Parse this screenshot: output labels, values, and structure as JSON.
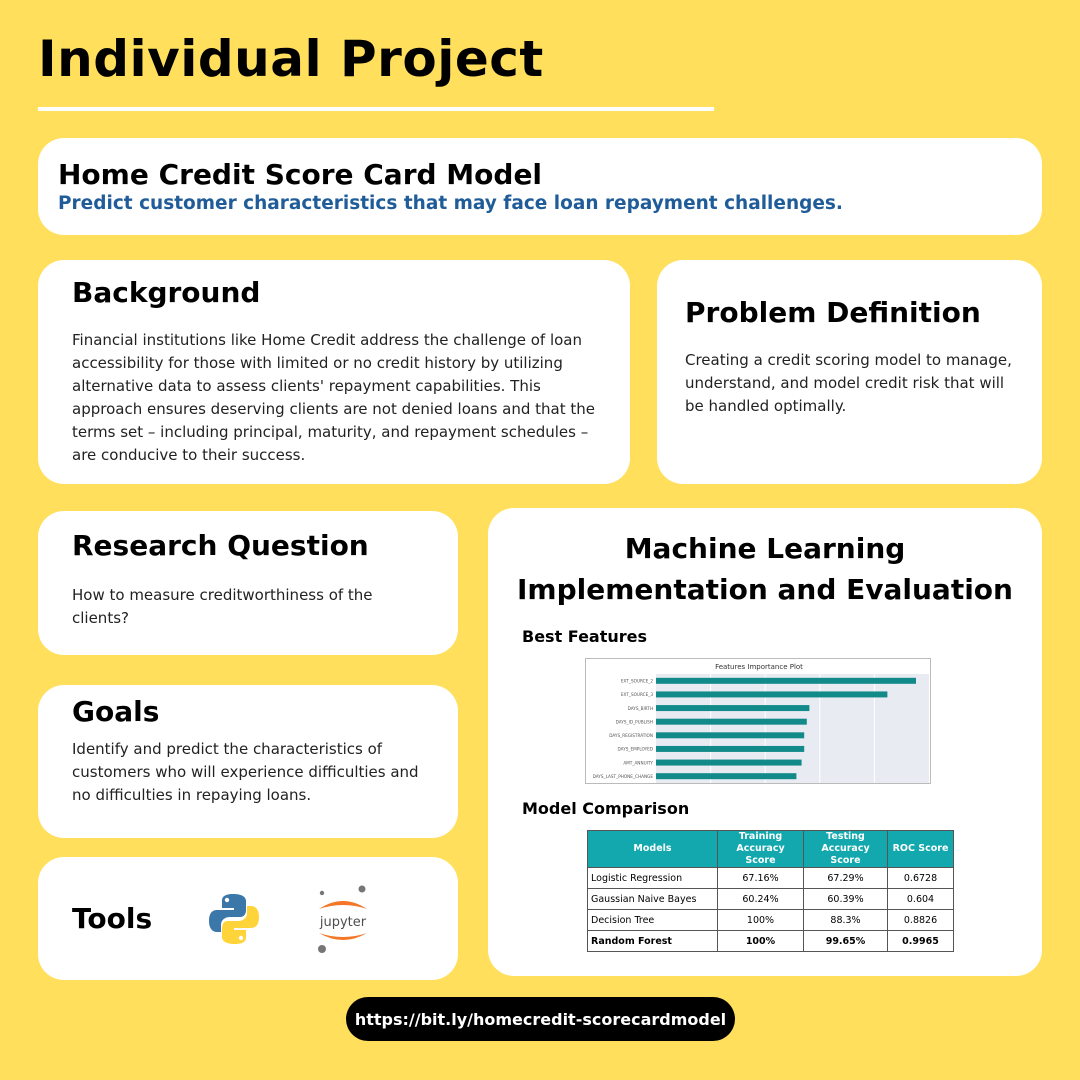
{
  "page_title": "Individual Project",
  "header": {
    "title": "Home Credit Score Card Model",
    "subtitle": "Predict customer characteristics that may face loan repayment challenges."
  },
  "background": {
    "title": "Background",
    "text": "Financial institutions like Home Credit address the challenge of loan accessibility for those with limited or no credit history by utilizing alternative data to assess clients' repayment capabilities. This approach ensures deserving clients are not denied loans and that the terms set – including principal, maturity, and repayment schedules – are conducive to their success."
  },
  "problem": {
    "title": "Problem Definition",
    "text": "Creating a credit scoring model to manage, understand, and model credit risk that will be handled optimally."
  },
  "research": {
    "title": "Research Question",
    "text": "How to measure creditworthiness of the clients?"
  },
  "goals": {
    "title": "Goals",
    "text": "Identify and predict the characteristics of customers who will experience difficulties and no difficulties in repaying loans."
  },
  "tools": {
    "title": "Tools",
    "items": [
      {
        "name": "Python",
        "icon": "python-icon"
      },
      {
        "name": "jupyter",
        "icon": "jupyter-icon"
      }
    ]
  },
  "ml": {
    "title_line1": "Machine Learning",
    "title_line2": "Implementation and Evaluation",
    "features_label": "Best Features",
    "comparison_label": "Model Comparison"
  },
  "chart_data": {
    "type": "bar",
    "title": "Features Importance Plot",
    "orientation": "horizontal",
    "categories": [
      "EXT_SOURCE_2",
      "EXT_SOURCE_3",
      "DAYS_BIRTH",
      "DAYS_ID_PUBLISH",
      "DAYS_REGISTRATION",
      "DAYS_EMPLOYED",
      "AMT_ANNUITY",
      "DAYS_LAST_PHONE_CHANGE"
    ],
    "values": [
      1.0,
      0.89,
      0.59,
      0.58,
      0.57,
      0.57,
      0.56,
      0.54
    ],
    "xlim": [
      0,
      1.05
    ],
    "grid": true,
    "color": "#138A8A"
  },
  "table": {
    "headers": [
      "Models",
      "Training Accuracy Score",
      "Testing Accuracy Score",
      "ROC Score"
    ],
    "rows": [
      [
        "Logistic Regression",
        "67.16%",
        "67.29%",
        "0.6728"
      ],
      [
        "Gaussian Naive Bayes",
        "60.24%",
        "60.39%",
        "0.604"
      ],
      [
        "Decision Tree",
        "100%",
        "88.3%",
        "0.8826"
      ],
      [
        "Random Forest",
        "100%",
        "99.65%",
        "0.9965"
      ]
    ],
    "header_color": "#12A8AE"
  },
  "link": "https://bit.ly/homecredit-scorecardmodel"
}
